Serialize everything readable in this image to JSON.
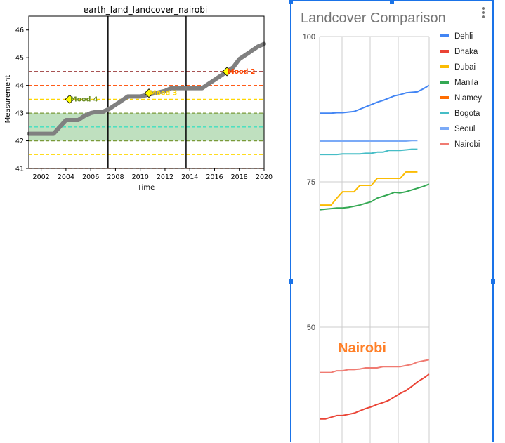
{
  "left": {
    "chart_data": {
      "type": "line",
      "title": "earth_land_landcover_nairobi",
      "xlabel": "Time",
      "ylabel": "Measurement",
      "xlim": [
        2001,
        2020
      ],
      "ylim": [
        41,
        46.5
      ],
      "xticks": [
        2002,
        2004,
        2006,
        2008,
        2010,
        2012,
        2014,
        2016,
        2018,
        2020
      ],
      "yticks": [
        41,
        42,
        43,
        44,
        45,
        46
      ],
      "series": [
        {
          "x": [
            2001,
            2002,
            2003,
            2003.5,
            2004,
            2004.5,
            2005,
            2005.5,
            2006,
            2006.5,
            2007,
            2007.5,
            2008,
            2008.5,
            2009,
            2009.5,
            2010,
            2010.5,
            2011,
            2011.5,
            2012,
            2012.5,
            2013,
            2013.5,
            2014,
            2014.5,
            2015,
            2015.5,
            2016,
            2016.5,
            2017,
            2017.5,
            2018,
            2018.5,
            2019,
            2019.5,
            2020
          ],
          "y": [
            42.25,
            42.25,
            42.25,
            42.5,
            42.75,
            42.75,
            42.75,
            42.9,
            43.0,
            43.05,
            43.05,
            43.15,
            43.3,
            43.45,
            43.6,
            43.6,
            43.6,
            43.65,
            43.7,
            43.75,
            43.8,
            43.9,
            43.9,
            43.9,
            43.9,
            43.9,
            43.9,
            44.05,
            44.2,
            44.35,
            44.5,
            44.65,
            44.95,
            45.1,
            45.25,
            45.4,
            45.5
          ]
        }
      ],
      "band": [
        42,
        43
      ],
      "vlines": [
        2007.4,
        2013.7
      ],
      "hlines": [
        {
          "y": 44.5,
          "color": "#8b1a1a"
        },
        {
          "y": 44.0,
          "color": "#ff5c1a"
        },
        {
          "y": 43.5,
          "color": "#ffd700"
        },
        {
          "y": 43.0,
          "color": "#7a9a3a"
        },
        {
          "y": 42.5,
          "color": "#3ee0c0"
        },
        {
          "y": 42.0,
          "color": "#7a9a3a"
        },
        {
          "y": 41.5,
          "color": "#ffd700"
        },
        {
          "y": 41.0,
          "color": "#ff5c1a"
        }
      ],
      "annotations": [
        {
          "x": 2004.3,
          "y": 43.5,
          "label": "Mood 4",
          "color": "#6b8e23"
        },
        {
          "x": 2010.7,
          "y": 43.72,
          "label": "Mood 3",
          "color": "#ffd700"
        },
        {
          "x": 2017.0,
          "y": 44.5,
          "label": "Mood 2",
          "color": "#ff4500"
        }
      ]
    }
  },
  "right": {
    "chart_data": {
      "type": "line",
      "title": "Landcover Comparison",
      "ylim": [
        40,
        100
      ],
      "yticks": [
        50,
        75,
        100
      ],
      "annotation": "Nairobi",
      "annotation_color": "#ff7f27",
      "series": [
        {
          "name": "Dehli",
          "color": "#4285f4",
          "values": [
            86.8,
            86.8,
            86.8,
            86.9,
            86.9,
            87.0,
            87.1,
            87.5,
            87.9,
            88.3,
            88.7,
            89.0,
            89.4,
            89.8,
            90.0,
            90.3,
            90.4,
            90.5,
            91.0,
            91.6
          ]
        },
        {
          "name": "Dhaka",
          "color": "#ea4335",
          "values": [
            34.2,
            34.2,
            34.5,
            34.8,
            34.8,
            35.0,
            35.2,
            35.6,
            36.0,
            36.3,
            36.7,
            37.0,
            37.4,
            38.0,
            38.6,
            39.1,
            39.8,
            40.6,
            41.2,
            41.9
          ]
        },
        {
          "name": "Dubai",
          "color": "#fbbc04",
          "values": [
            71.0,
            71.0,
            71.0,
            72.2,
            73.3,
            73.3,
            73.3,
            74.4,
            74.4,
            74.4,
            75.6,
            75.6,
            75.6,
            75.6,
            75.6,
            76.7,
            76.7,
            76.7
          ]
        },
        {
          "name": "Manila",
          "color": "#34a853",
          "values": [
            70.2,
            70.3,
            70.4,
            70.5,
            70.5,
            70.6,
            70.8,
            71.0,
            71.3,
            71.6,
            72.2,
            72.5,
            72.8,
            73.2,
            73.1,
            73.3,
            73.6,
            73.9,
            74.2,
            74.6
          ]
        },
        {
          "name": "Niamey",
          "color": "#ff6d01",
          "values": []
        },
        {
          "name": "Bogota",
          "color": "#46bdc6",
          "values": [
            79.7,
            79.7,
            79.7,
            79.7,
            79.8,
            79.8,
            79.8,
            79.8,
            79.9,
            79.9,
            80.1,
            80.1,
            80.4,
            80.4,
            80.4,
            80.5,
            80.6,
            80.6
          ]
        },
        {
          "name": "Seoul",
          "color": "#7baaf7",
          "values": [
            82.0,
            82.0,
            82.0,
            82.0,
            82.0,
            82.0,
            82.0,
            82.0,
            82.0,
            82.0,
            82.0,
            82.0,
            82.0,
            82.0,
            82.0,
            82.0,
            82.1,
            82.1
          ]
        },
        {
          "name": "Nairobi",
          "color": "#f07b72",
          "values": [
            42.2,
            42.2,
            42.2,
            42.5,
            42.5,
            42.7,
            42.7,
            42.8,
            43.0,
            43.0,
            43.0,
            43.2,
            43.2,
            43.2,
            43.2,
            43.4,
            43.6,
            44.0,
            44.2,
            44.4
          ]
        }
      ]
    }
  }
}
